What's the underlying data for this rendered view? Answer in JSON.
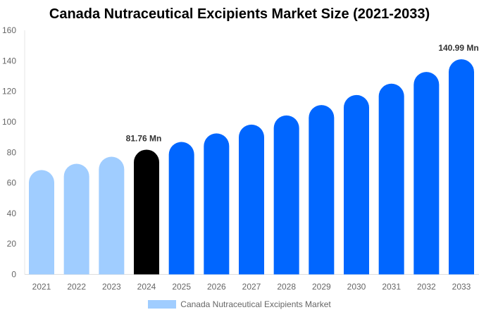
{
  "chart_data": {
    "type": "bar",
    "title": "Canada Nutraceutical Excipients Market Size (2021-2033)",
    "categories": [
      "2021",
      "2022",
      "2023",
      "2024",
      "2025",
      "2026",
      "2027",
      "2028",
      "2029",
      "2030",
      "2031",
      "2032",
      "2033"
    ],
    "series": [
      {
        "name": "Canada Nutraceutical Excipients Market",
        "values": [
          68.4,
          72.5,
          77.1,
          81.76,
          86.8,
          92.4,
          98.2,
          104.2,
          111.0,
          117.6,
          125.0,
          132.7,
          140.99
        ]
      }
    ],
    "data_labels": [
      {
        "category": "2024",
        "text": "81.76 Mn"
      },
      {
        "category": "2033",
        "text": "140.99 Mn"
      }
    ],
    "ylim": [
      0,
      160
    ],
    "yticks": [
      "0",
      "20",
      "40",
      "60",
      "80",
      "100",
      "120",
      "140",
      "160"
    ],
    "grid": false,
    "legend_position": "bottom",
    "colors": {
      "historical": "#a0cdff",
      "base_year": "#000000",
      "forecast": "#0066ff"
    },
    "bar_color_group": [
      "historical",
      "historical",
      "historical",
      "base_year",
      "forecast",
      "forecast",
      "forecast",
      "forecast",
      "forecast",
      "forecast",
      "forecast",
      "forecast",
      "forecast"
    ],
    "legend_color": "#a0cdff"
  }
}
